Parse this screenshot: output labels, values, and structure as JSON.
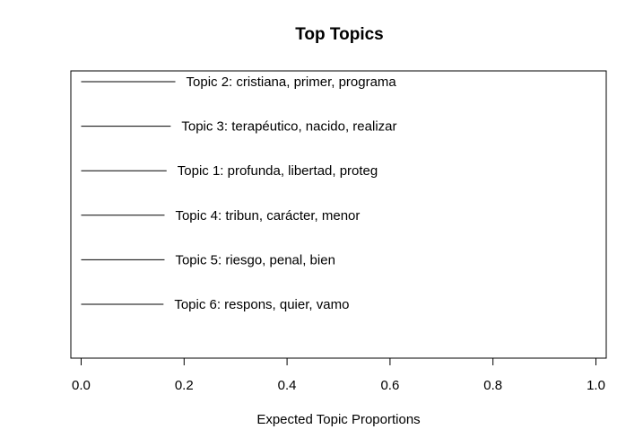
{
  "chart_data": {
    "type": "bar",
    "title": "Top Topics",
    "xlabel": "Expected Topic Proportions",
    "ylabel": "",
    "xlim": [
      -0.02,
      1.02
    ],
    "x_ticks": [
      0.0,
      0.2,
      0.4,
      0.6,
      0.8,
      1.0
    ],
    "x_tick_labels": [
      "0.0",
      "0.2",
      "0.4",
      "0.6",
      "0.8",
      "1.0"
    ],
    "categories": [
      "Topic 2: cristiana, primer, programa",
      "Topic 3: terapéutico, nacido, realizar",
      "Topic 1: profunda, libertad, proteg",
      "Topic 4: tribun, carácter, menor",
      "Topic 5: riesgo, penal, bien",
      "Topic 6: respons, quier, vamo"
    ],
    "values": [
      0.183,
      0.174,
      0.166,
      0.162,
      0.162,
      0.16
    ],
    "grid": false,
    "legend": "none"
  }
}
